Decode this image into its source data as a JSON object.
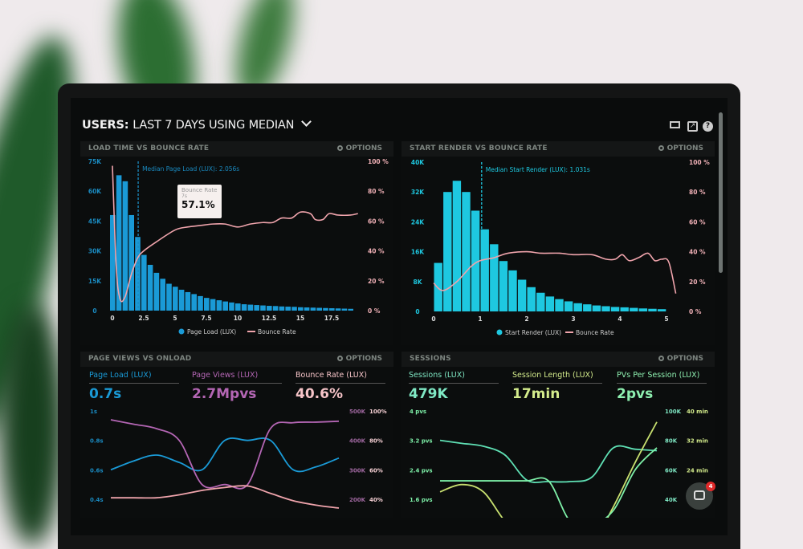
{
  "header": {
    "title_bold": "USERS:",
    "title_rest": "LAST 7 DAYS USING MEDIAN",
    "icons": [
      "monitor-icon",
      "share-icon",
      "help-icon"
    ]
  },
  "options_label": "OPTIONS",
  "chat": {
    "badge_count": "4"
  },
  "colors": {
    "page_load": "#1a9ad6",
    "start_render": "#1ec8e0",
    "bounce": "#f0a4ac",
    "page_views": "#b466b4",
    "sessions": "#5fe0b4",
    "session_length": "#c8e070",
    "pvs_per_session": "#7ef0a8"
  },
  "chart_data": [
    {
      "type": "bar",
      "title": "LOAD TIME VS BOUNCE RATE",
      "annotation": "Median Page Load (LUX): 2.056s",
      "median_x": 2.056,
      "tooltip": {
        "label": "Bounce Rate",
        "sub": "7s",
        "value": "57.1%"
      },
      "x_ticks": [
        "0",
        "2.5",
        "5",
        "7.5",
        "10",
        "12.5",
        "15",
        "17.5"
      ],
      "y_ticks": [
        "0",
        "15K",
        "30K",
        "45K",
        "60K",
        "75K"
      ],
      "y2_ticks": [
        "0 %",
        "20 %",
        "40 %",
        "60 %",
        "80 %",
        "100 %"
      ],
      "xlim": [
        0,
        20
      ],
      "ylim": [
        0,
        75000
      ],
      "y2lim": [
        0,
        100
      ],
      "legend": [
        "Page Load (LUX)",
        "Bounce Rate"
      ],
      "bar_width": 0.5,
      "bars_x": [
        0,
        0.5,
        1,
        1.5,
        2,
        2.5,
        3,
        3.5,
        4,
        4.5,
        5,
        5.5,
        6,
        6.5,
        7,
        7.5,
        8,
        8.5,
        9,
        9.5,
        10,
        10.5,
        11,
        11.5,
        12,
        12.5,
        13,
        13.5,
        14,
        14.5,
        15,
        15.5,
        16,
        16.5,
        17,
        17.5,
        18,
        18.5,
        19
      ],
      "bars_y": [
        48000,
        68000,
        65000,
        48000,
        37000,
        28000,
        23000,
        19000,
        16000,
        13500,
        12000,
        10500,
        9300,
        8300,
        7300,
        6400,
        5800,
        5200,
        4600,
        4100,
        3600,
        3200,
        3000,
        2800,
        2600,
        2400,
        2300,
        2100,
        2000,
        1900,
        1700,
        1600,
        1500,
        1400,
        1300,
        1200,
        1100,
        1000,
        900
      ],
      "line": {
        "x": [
          0,
          0.3,
          0.6,
          1,
          1.5,
          2,
          2.5,
          3.5,
          5,
          6,
          7,
          8,
          9,
          10,
          11,
          12,
          12.8,
          13.5,
          14.3,
          15,
          15.8,
          16.2,
          16.8,
          17.3,
          18,
          19,
          19.6
        ],
        "y": [
          97,
          30,
          8,
          9,
          24,
          35,
          40,
          46,
          54,
          56,
          57,
          58,
          58,
          56,
          58,
          59,
          59,
          62,
          62,
          66,
          65,
          61,
          61,
          65,
          64,
          64,
          65
        ]
      }
    },
    {
      "type": "bar",
      "title": "START RENDER VS BOUNCE RATE",
      "annotation": "Median Start Render (LUX): 1.031s",
      "median_x": 1.031,
      "x_ticks": [
        "0",
        "1",
        "2",
        "3",
        "4",
        "5"
      ],
      "y_ticks": [
        "0",
        "8K",
        "16K",
        "24K",
        "32K",
        "40K"
      ],
      "y2_ticks": [
        "0 %",
        "20 %",
        "40 %",
        "60 %",
        "80 %",
        "100 %"
      ],
      "xlim": [
        0,
        5
      ],
      "ylim": [
        0,
        40000
      ],
      "y2lim": [
        0,
        100
      ],
      "legend": [
        "Start Render (LUX)",
        "Bounce Rate"
      ],
      "bar_width": 0.2,
      "bars_x": [
        0.1,
        0.3,
        0.5,
        0.7,
        0.9,
        1.1,
        1.3,
        1.5,
        1.7,
        1.9,
        2.1,
        2.3,
        2.5,
        2.7,
        2.9,
        3.1,
        3.3,
        3.5,
        3.7,
        3.9,
        4.1,
        4.3,
        4.5,
        4.7,
        4.9
      ],
      "bars_y": [
        13000,
        32000,
        35000,
        32000,
        27000,
        22000,
        18000,
        13500,
        11000,
        8500,
        6500,
        5000,
        4000,
        3300,
        2700,
        2200,
        1900,
        1600,
        1400,
        1200,
        1100,
        950,
        800,
        700,
        600
      ],
      "line": {
        "x": [
          0,
          0.2,
          0.5,
          0.8,
          1,
          1.3,
          1.6,
          2,
          2.3,
          2.7,
          3,
          3.4,
          3.7,
          3.9,
          4.05,
          4.2,
          4.4,
          4.6,
          4.75,
          4.9,
          5.05,
          5.2
        ],
        "y": [
          19,
          14,
          20,
          30,
          34,
          36,
          39,
          40,
          39,
          39,
          38,
          38,
          35,
          35,
          38,
          34,
          36,
          39,
          34,
          35,
          33,
          12
        ]
      }
    },
    {
      "type": "line",
      "title": "PAGE VIEWS VS ONLOAD",
      "kpis": [
        {
          "label": "Page Load (LUX)",
          "value": "0.7s"
        },
        {
          "label": "Page Views (LUX)",
          "value": "2.7Mpvs"
        },
        {
          "label": "Bounce Rate (LUX)",
          "value": "40.6%"
        }
      ],
      "y_ticks": [
        "1s",
        "0.8s",
        "0.6s",
        "0.4s"
      ],
      "y2_ticks": [
        "500K",
        "400K",
        "300K",
        "200K"
      ],
      "y3_ticks": [
        "100%",
        "80%",
        "60%",
        "40%"
      ],
      "series": [
        {
          "name": "Page Load (LUX)",
          "axis": "s",
          "range": [
            0.4,
            1
          ],
          "y": [
            0.6,
            0.66,
            0.7,
            0.65,
            0.6,
            0.8,
            0.8,
            0.8,
            0.6,
            0.62,
            0.68
          ]
        },
        {
          "name": "Page Views (LUX)",
          "axis": "K",
          "range": [
            200000,
            500000
          ],
          "y": [
            470000,
            455000,
            440000,
            400000,
            250000,
            250000,
            250000,
            440000,
            460000,
            462000,
            465000
          ]
        },
        {
          "name": "Bounce Rate (LUX)",
          "axis": "%",
          "range": [
            40,
            100
          ],
          "y": [
            41,
            41,
            41,
            43,
            46,
            48,
            49,
            44,
            39,
            36,
            34
          ]
        }
      ]
    },
    {
      "type": "line",
      "title": "SESSIONS",
      "kpis": [
        {
          "label": "Sessions (LUX)",
          "value": "479K"
        },
        {
          "label": "Session Length (LUX)",
          "value": "17min"
        },
        {
          "label": "PVs Per Session (LUX)",
          "value": "2pvs"
        }
      ],
      "y_ticks": [
        "4 pvs",
        "3.2 pvs",
        "2.4 pvs",
        "1.6 pvs"
      ],
      "y2_ticks": [
        "100K",
        "80K",
        "60K",
        "40K"
      ],
      "y3_ticks": [
        "40 min",
        "32 min",
        "24 min",
        ""
      ],
      "series": [
        {
          "name": "Sessions (LUX)",
          "axis": "K",
          "range": [
            40000,
            100000
          ],
          "y": [
            80000,
            78000,
            76000,
            70000,
            53000,
            52000,
            52000,
            55000,
            75000,
            74000,
            73000
          ]
        },
        {
          "name": "Session Length (LUX)",
          "axis": "min",
          "range": [
            16,
            40
          ],
          "y": [
            18,
            20,
            18,
            10,
            5,
            3,
            2,
            4,
            14,
            26,
            37
          ]
        },
        {
          "name": "PVs Per Session (LUX)",
          "axis": "pvs",
          "range": [
            1.6,
            4
          ],
          "y": [
            2.1,
            2.1,
            2.1,
            2.1,
            2.1,
            2.1,
            1.0,
            0.9,
            1.3,
            2.4,
            3.0
          ]
        }
      ]
    }
  ]
}
